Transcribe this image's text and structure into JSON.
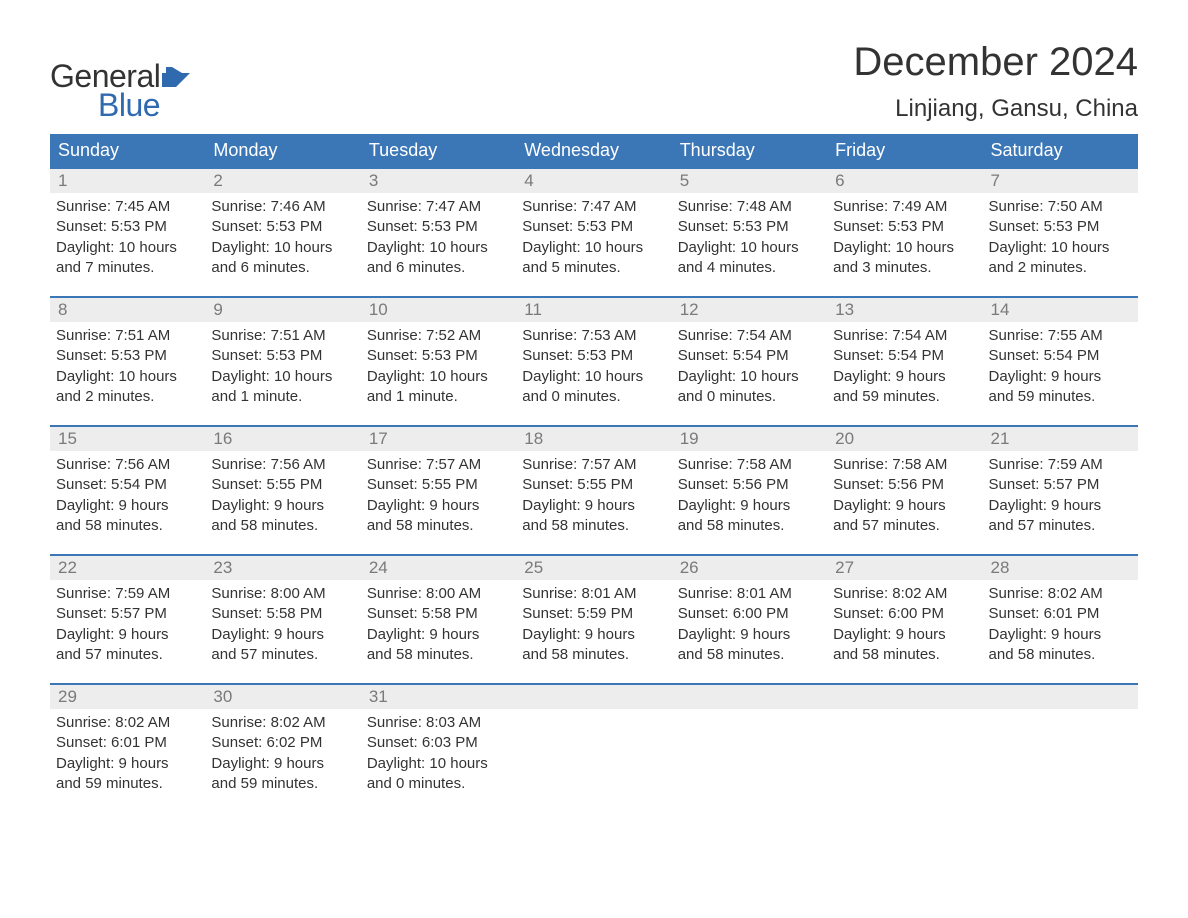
{
  "brand": {
    "word1": "General",
    "word2": "Blue",
    "flag_color": "#2f6aaf",
    "text_color_dark": "#333333",
    "text_color_accent": "#2f6aaf"
  },
  "title": "December 2024",
  "location": "Linjiang, Gansu, China",
  "colors": {
    "header_bg": "#3b77b6",
    "header_fg": "#ffffff",
    "daynum_bg": "#ededed",
    "daynum_fg": "#7a7a7a",
    "body_fg": "#333333",
    "week_border": "#3b77b6",
    "page_bg": "#ffffff"
  },
  "typography": {
    "title_fontsize": 40,
    "location_fontsize": 24,
    "dow_fontsize": 18,
    "daynum_fontsize": 17,
    "body_fontsize": 15,
    "logo_fontsize": 32
  },
  "days_of_week": [
    "Sunday",
    "Monday",
    "Tuesday",
    "Wednesday",
    "Thursday",
    "Friday",
    "Saturday"
  ],
  "weeks": [
    [
      {
        "n": "1",
        "sunrise": "Sunrise: 7:45 AM",
        "sunset": "Sunset: 5:53 PM",
        "d1": "Daylight: 10 hours",
        "d2": "and 7 minutes."
      },
      {
        "n": "2",
        "sunrise": "Sunrise: 7:46 AM",
        "sunset": "Sunset: 5:53 PM",
        "d1": "Daylight: 10 hours",
        "d2": "and 6 minutes."
      },
      {
        "n": "3",
        "sunrise": "Sunrise: 7:47 AM",
        "sunset": "Sunset: 5:53 PM",
        "d1": "Daylight: 10 hours",
        "d2": "and 6 minutes."
      },
      {
        "n": "4",
        "sunrise": "Sunrise: 7:47 AM",
        "sunset": "Sunset: 5:53 PM",
        "d1": "Daylight: 10 hours",
        "d2": "and 5 minutes."
      },
      {
        "n": "5",
        "sunrise": "Sunrise: 7:48 AM",
        "sunset": "Sunset: 5:53 PM",
        "d1": "Daylight: 10 hours",
        "d2": "and 4 minutes."
      },
      {
        "n": "6",
        "sunrise": "Sunrise: 7:49 AM",
        "sunset": "Sunset: 5:53 PM",
        "d1": "Daylight: 10 hours",
        "d2": "and 3 minutes."
      },
      {
        "n": "7",
        "sunrise": "Sunrise: 7:50 AM",
        "sunset": "Sunset: 5:53 PM",
        "d1": "Daylight: 10 hours",
        "d2": "and 2 minutes."
      }
    ],
    [
      {
        "n": "8",
        "sunrise": "Sunrise: 7:51 AM",
        "sunset": "Sunset: 5:53 PM",
        "d1": "Daylight: 10 hours",
        "d2": "and 2 minutes."
      },
      {
        "n": "9",
        "sunrise": "Sunrise: 7:51 AM",
        "sunset": "Sunset: 5:53 PM",
        "d1": "Daylight: 10 hours",
        "d2": "and 1 minute."
      },
      {
        "n": "10",
        "sunrise": "Sunrise: 7:52 AM",
        "sunset": "Sunset: 5:53 PM",
        "d1": "Daylight: 10 hours",
        "d2": "and 1 minute."
      },
      {
        "n": "11",
        "sunrise": "Sunrise: 7:53 AM",
        "sunset": "Sunset: 5:53 PM",
        "d1": "Daylight: 10 hours",
        "d2": "and 0 minutes."
      },
      {
        "n": "12",
        "sunrise": "Sunrise: 7:54 AM",
        "sunset": "Sunset: 5:54 PM",
        "d1": "Daylight: 10 hours",
        "d2": "and 0 minutes."
      },
      {
        "n": "13",
        "sunrise": "Sunrise: 7:54 AM",
        "sunset": "Sunset: 5:54 PM",
        "d1": "Daylight: 9 hours",
        "d2": "and 59 minutes."
      },
      {
        "n": "14",
        "sunrise": "Sunrise: 7:55 AM",
        "sunset": "Sunset: 5:54 PM",
        "d1": "Daylight: 9 hours",
        "d2": "and 59 minutes."
      }
    ],
    [
      {
        "n": "15",
        "sunrise": "Sunrise: 7:56 AM",
        "sunset": "Sunset: 5:54 PM",
        "d1": "Daylight: 9 hours",
        "d2": "and 58 minutes."
      },
      {
        "n": "16",
        "sunrise": "Sunrise: 7:56 AM",
        "sunset": "Sunset: 5:55 PM",
        "d1": "Daylight: 9 hours",
        "d2": "and 58 minutes."
      },
      {
        "n": "17",
        "sunrise": "Sunrise: 7:57 AM",
        "sunset": "Sunset: 5:55 PM",
        "d1": "Daylight: 9 hours",
        "d2": "and 58 minutes."
      },
      {
        "n": "18",
        "sunrise": "Sunrise: 7:57 AM",
        "sunset": "Sunset: 5:55 PM",
        "d1": "Daylight: 9 hours",
        "d2": "and 58 minutes."
      },
      {
        "n": "19",
        "sunrise": "Sunrise: 7:58 AM",
        "sunset": "Sunset: 5:56 PM",
        "d1": "Daylight: 9 hours",
        "d2": "and 58 minutes."
      },
      {
        "n": "20",
        "sunrise": "Sunrise: 7:58 AM",
        "sunset": "Sunset: 5:56 PM",
        "d1": "Daylight: 9 hours",
        "d2": "and 57 minutes."
      },
      {
        "n": "21",
        "sunrise": "Sunrise: 7:59 AM",
        "sunset": "Sunset: 5:57 PM",
        "d1": "Daylight: 9 hours",
        "d2": "and 57 minutes."
      }
    ],
    [
      {
        "n": "22",
        "sunrise": "Sunrise: 7:59 AM",
        "sunset": "Sunset: 5:57 PM",
        "d1": "Daylight: 9 hours",
        "d2": "and 57 minutes."
      },
      {
        "n": "23",
        "sunrise": "Sunrise: 8:00 AM",
        "sunset": "Sunset: 5:58 PM",
        "d1": "Daylight: 9 hours",
        "d2": "and 57 minutes."
      },
      {
        "n": "24",
        "sunrise": "Sunrise: 8:00 AM",
        "sunset": "Sunset: 5:58 PM",
        "d1": "Daylight: 9 hours",
        "d2": "and 58 minutes."
      },
      {
        "n": "25",
        "sunrise": "Sunrise: 8:01 AM",
        "sunset": "Sunset: 5:59 PM",
        "d1": "Daylight: 9 hours",
        "d2": "and 58 minutes."
      },
      {
        "n": "26",
        "sunrise": "Sunrise: 8:01 AM",
        "sunset": "Sunset: 6:00 PM",
        "d1": "Daylight: 9 hours",
        "d2": "and 58 minutes."
      },
      {
        "n": "27",
        "sunrise": "Sunrise: 8:02 AM",
        "sunset": "Sunset: 6:00 PM",
        "d1": "Daylight: 9 hours",
        "d2": "and 58 minutes."
      },
      {
        "n": "28",
        "sunrise": "Sunrise: 8:02 AM",
        "sunset": "Sunset: 6:01 PM",
        "d1": "Daylight: 9 hours",
        "d2": "and 58 minutes."
      }
    ],
    [
      {
        "n": "29",
        "sunrise": "Sunrise: 8:02 AM",
        "sunset": "Sunset: 6:01 PM",
        "d1": "Daylight: 9 hours",
        "d2": "and 59 minutes."
      },
      {
        "n": "30",
        "sunrise": "Sunrise: 8:02 AM",
        "sunset": "Sunset: 6:02 PM",
        "d1": "Daylight: 9 hours",
        "d2": "and 59 minutes."
      },
      {
        "n": "31",
        "sunrise": "Sunrise: 8:03 AM",
        "sunset": "Sunset: 6:03 PM",
        "d1": "Daylight: 10 hours",
        "d2": "and 0 minutes."
      },
      {
        "empty": true
      },
      {
        "empty": true
      },
      {
        "empty": true
      },
      {
        "empty": true
      }
    ]
  ]
}
